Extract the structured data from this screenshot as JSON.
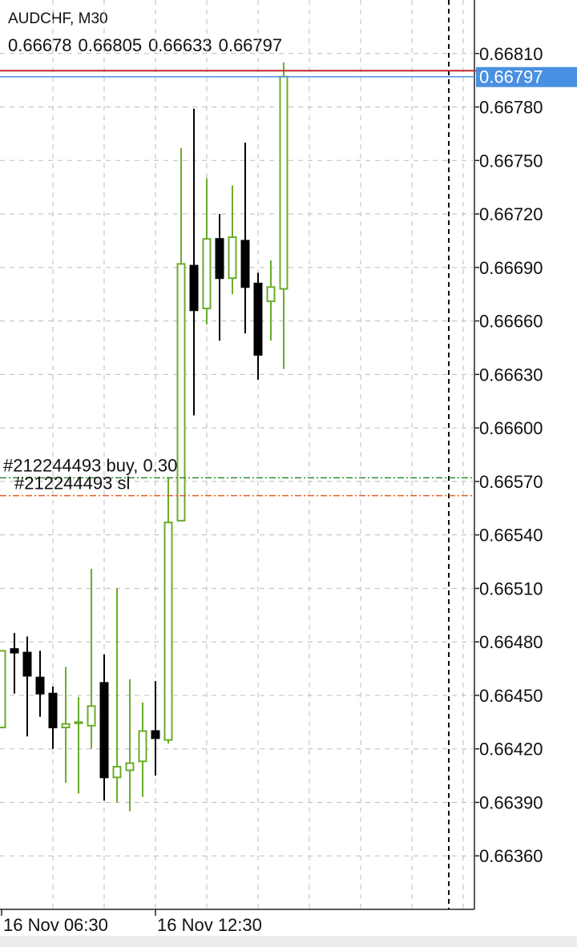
{
  "chart_data": {
    "type": "candlestick",
    "title": "AUDCHF, M30",
    "x": [
      "16 Nov 06:30",
      null,
      null,
      null,
      null,
      null,
      null,
      null,
      null,
      null,
      null,
      null,
      "16 Nov 12:30",
      null,
      null,
      null,
      null,
      null,
      null,
      null,
      null,
      null,
      null
    ],
    "open": [
      0.66432,
      0.66476,
      0.66474,
      0.6646,
      0.66451,
      0.66432,
      0.66435,
      0.66433,
      0.66457,
      0.66404,
      0.66408,
      0.66413,
      0.6643,
      0.66425,
      0.66548,
      0.66691,
      0.66667,
      0.66706,
      0.66684,
      0.66705,
      0.66681,
      0.66671,
      0.66678
    ],
    "high": [
      0.66475,
      0.66485,
      0.66483,
      0.66475,
      0.66455,
      0.66466,
      0.66449,
      0.66521,
      0.66473,
      0.6651,
      0.66459,
      0.66446,
      0.66458,
      0.66572,
      0.66757,
      0.66779,
      0.6674,
      0.6672,
      0.66736,
      0.6676,
      0.66687,
      0.66694,
      0.66805
    ],
    "low": [
      0.66432,
      0.66451,
      0.66427,
      0.66438,
      0.6642,
      0.66401,
      0.66395,
      0.6642,
      0.66391,
      0.6639,
      0.66385,
      0.66393,
      0.66405,
      0.66423,
      0.66548,
      0.66607,
      0.66658,
      0.66649,
      0.66675,
      0.66653,
      0.66627,
      0.66649,
      0.66633
    ],
    "close": [
      0.66475,
      0.66474,
      0.66461,
      0.66451,
      0.66432,
      0.66434,
      0.66435,
      0.66444,
      0.66404,
      0.6641,
      0.66412,
      0.6643,
      0.66426,
      0.66547,
      0.66692,
      0.66666,
      0.66706,
      0.66684,
      0.66707,
      0.66679,
      0.66641,
      0.66679,
      0.66797
    ],
    "up_color": "#6aad2a",
    "down_color": "#000000",
    "ylim": [
      0.6633,
      0.6684
    ],
    "yticks": [
      {
        "value": 0.6681,
        "label": "0.66810"
      },
      {
        "value": 0.6678,
        "label": "0.66780"
      },
      {
        "value": 0.6675,
        "label": "0.66750"
      },
      {
        "value": 0.6672,
        "label": "0.66720"
      },
      {
        "value": 0.6669,
        "label": "0.66690"
      },
      {
        "value": 0.6666,
        "label": "0.66660"
      },
      {
        "value": 0.6663,
        "label": "0.66630"
      },
      {
        "value": 0.666,
        "label": "0.66600"
      },
      {
        "value": 0.6657,
        "label": "0.66570"
      },
      {
        "value": 0.6654,
        "label": "0.66540"
      },
      {
        "value": 0.6651,
        "label": "0.66510"
      },
      {
        "value": 0.6648,
        "label": "0.66480"
      },
      {
        "value": 0.6645,
        "label": "0.66450"
      },
      {
        "value": 0.6642,
        "label": "0.66420"
      },
      {
        "value": 0.6639,
        "label": "0.66390"
      },
      {
        "value": 0.6636,
        "label": "0.66360"
      }
    ],
    "grid": true,
    "bid": 0.66797,
    "bid_color": "#4a90e2",
    "ask": 0.66799,
    "ask_color": "#c0282d",
    "orders": [
      {
        "label": "#212244493 buy, 0.30",
        "value": 0.66572,
        "color": "#2e8b2e"
      },
      {
        "label": "#212244493 sl",
        "value": 0.66562,
        "color": "#e0622a"
      }
    ]
  }
}
